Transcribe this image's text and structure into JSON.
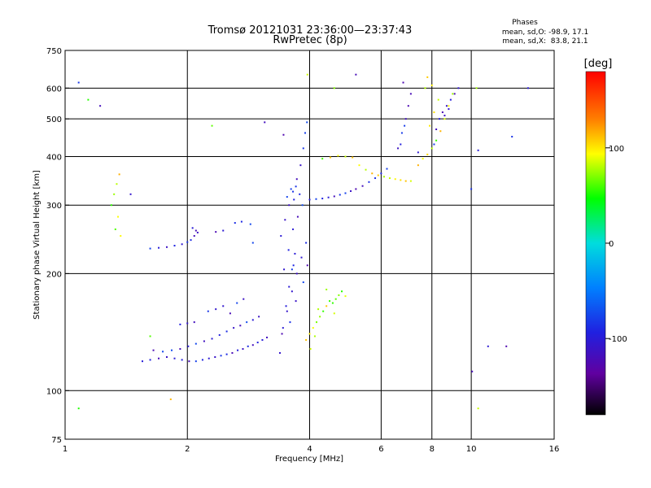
{
  "chart_data": {
    "type": "scatter",
    "title": "Tromsø 20121031 23:36:00—23:37:43",
    "subtitle": "RwPretec (8p)",
    "xlabel": "Frequency [MHz]",
    "ylabel": "Stationary phase Virtual Height [km]",
    "x_scale": "log2",
    "y_scale": "log",
    "xlim": [
      1,
      16
    ],
    "ylim": [
      75,
      750
    ],
    "x_ticks": [
      1,
      2,
      4,
      6,
      8,
      10,
      16
    ],
    "y_ticks": [
      75,
      100,
      200,
      300,
      400,
      500,
      600,
      750
    ],
    "x_grid": [
      2,
      4,
      6,
      8,
      10
    ],
    "y_grid": [
      100,
      200,
      300,
      400,
      500,
      600
    ],
    "grid": true,
    "phase_stats": {
      "title": "Phases",
      "line_o": "mean, sd,O: -98.9, 17.1",
      "line_x": "mean, sd,X:  83.8, 21.1"
    },
    "colorbar": {
      "label": "[deg]",
      "min": -180,
      "max": 180,
      "ticks": [
        100,
        0,
        -100
      ],
      "tick_labels": [
        "100",
        "0",
        "-100"
      ]
    },
    "series": [
      {
        "mean_phase": -98.9,
        "sd_phase": 17.1,
        "color": "#2a2af0",
        "points": [
          [
            1.55,
            119
          ],
          [
            1.62,
            120
          ],
          [
            1.7,
            121
          ],
          [
            1.78,
            122
          ],
          [
            1.86,
            121
          ],
          [
            1.94,
            120
          ],
          [
            2.02,
            119
          ],
          [
            2.1,
            119
          ],
          [
            2.18,
            120
          ],
          [
            2.26,
            121
          ],
          [
            2.34,
            122
          ],
          [
            2.42,
            123
          ],
          [
            2.5,
            124
          ],
          [
            2.58,
            125
          ],
          [
            2.66,
            127
          ],
          [
            2.74,
            128
          ],
          [
            2.82,
            130
          ],
          [
            2.9,
            131
          ],
          [
            2.98,
            133
          ],
          [
            3.06,
            135
          ],
          [
            3.14,
            137
          ],
          [
            1.65,
            127
          ],
          [
            1.74,
            126
          ],
          [
            1.83,
            127
          ],
          [
            1.92,
            128
          ],
          [
            2.01,
            130
          ],
          [
            2.1,
            132
          ],
          [
            2.2,
            134
          ],
          [
            2.3,
            136
          ],
          [
            2.4,
            139
          ],
          [
            2.5,
            142
          ],
          [
            2.6,
            145
          ],
          [
            2.7,
            147
          ],
          [
            2.8,
            150
          ],
          [
            2.9,
            152
          ],
          [
            3.0,
            155
          ],
          [
            1.92,
            148
          ],
          [
            2.0,
            149
          ],
          [
            2.08,
            150
          ],
          [
            2.25,
            160
          ],
          [
            2.35,
            162
          ],
          [
            2.45,
            165
          ],
          [
            2.55,
            158
          ],
          [
            2.65,
            168
          ],
          [
            2.75,
            172
          ],
          [
            1.62,
            232
          ],
          [
            1.7,
            233
          ],
          [
            1.78,
            234
          ],
          [
            1.86,
            236
          ],
          [
            1.94,
            238
          ],
          [
            2.0,
            241
          ],
          [
            2.04,
            244
          ],
          [
            2.08,
            250
          ],
          [
            2.12,
            255
          ],
          [
            2.06,
            262
          ],
          [
            2.1,
            258
          ],
          [
            2.35,
            256
          ],
          [
            2.45,
            258
          ],
          [
            2.62,
            270
          ],
          [
            2.72,
            272
          ],
          [
            2.86,
            268
          ],
          [
            3.38,
            125
          ],
          [
            3.44,
            145
          ],
          [
            3.5,
            165
          ],
          [
            3.56,
            185
          ],
          [
            3.62,
            205
          ],
          [
            3.68,
            225
          ],
          [
            3.4,
            250
          ],
          [
            3.48,
            275
          ],
          [
            3.56,
            300
          ],
          [
            3.64,
            325
          ],
          [
            3.72,
            350
          ],
          [
            3.8,
            380
          ],
          [
            3.86,
            420
          ],
          [
            3.9,
            460
          ],
          [
            3.94,
            490
          ],
          [
            3.52,
            315
          ],
          [
            3.6,
            330
          ],
          [
            3.7,
            335
          ],
          [
            3.78,
            320
          ],
          [
            3.66,
            310
          ],
          [
            3.42,
            140
          ],
          [
            3.52,
            160
          ],
          [
            3.62,
            180
          ],
          [
            3.72,
            200
          ],
          [
            3.82,
            220
          ],
          [
            3.92,
            240
          ],
          [
            3.58,
            150
          ],
          [
            3.7,
            170
          ],
          [
            3.86,
            190
          ],
          [
            3.95,
            210
          ],
          [
            3.46,
            205
          ],
          [
            3.55,
            230
          ],
          [
            3.64,
            260
          ],
          [
            3.74,
            280
          ],
          [
            3.84,
            300
          ],
          [
            4.0,
            310
          ],
          [
            4.15,
            311
          ],
          [
            4.3,
            312
          ],
          [
            4.45,
            314
          ],
          [
            4.6,
            316
          ],
          [
            4.75,
            319
          ],
          [
            4.9,
            322
          ],
          [
            5.05,
            326
          ],
          [
            5.2,
            330
          ],
          [
            5.4,
            336
          ],
          [
            5.6,
            344
          ],
          [
            5.8,
            352
          ],
          [
            6.0,
            362
          ],
          [
            6.2,
            372
          ],
          [
            6.6,
            420
          ],
          [
            6.75,
            460
          ],
          [
            6.9,
            500
          ],
          [
            7.0,
            540
          ],
          [
            7.1,
            580
          ],
          [
            6.8,
            620
          ],
          [
            6.7,
            430
          ],
          [
            6.85,
            480
          ],
          [
            8.1,
            430
          ],
          [
            8.2,
            470
          ],
          [
            8.35,
            500
          ],
          [
            8.5,
            520
          ],
          [
            8.7,
            540
          ],
          [
            8.9,
            560
          ],
          [
            9.1,
            580
          ],
          [
            9.3,
            600
          ],
          [
            8.6,
            510
          ],
          [
            8.8,
            530
          ],
          [
            1.08,
            620
          ],
          [
            1.22,
            540
          ],
          [
            3.1,
            490
          ],
          [
            3.45,
            455
          ],
          [
            3.65,
            210
          ],
          [
            5.2,
            650
          ],
          [
            7.4,
            410
          ],
          [
            10.05,
            112
          ],
          [
            10.4,
            415
          ],
          [
            11.0,
            130
          ],
          [
            12.2,
            130
          ],
          [
            12.6,
            450
          ],
          [
            13.8,
            600
          ],
          [
            10.0,
            330
          ],
          [
            1.45,
            320
          ],
          [
            2.9,
            240
          ]
        ]
      },
      {
        "mean_phase": 83.8,
        "sd_phase": 21.1,
        "color": "#c8e800",
        "points": [
          [
            4.0,
            140
          ],
          [
            4.08,
            145
          ],
          [
            4.16,
            150
          ],
          [
            4.24,
            155
          ],
          [
            4.32,
            160
          ],
          [
            4.4,
            165
          ],
          [
            4.48,
            170
          ],
          [
            4.56,
            168
          ],
          [
            4.64,
            172
          ],
          [
            4.72,
            176
          ],
          [
            4.8,
            180
          ],
          [
            4.9,
            175
          ],
          [
            4.2,
            162
          ],
          [
            4.4,
            182
          ],
          [
            4.6,
            158
          ],
          [
            3.92,
            135
          ],
          [
            4.02,
            128
          ],
          [
            4.12,
            138
          ],
          [
            4.3,
            395
          ],
          [
            4.5,
            398
          ],
          [
            4.7,
            402
          ],
          [
            4.9,
            400
          ],
          [
            5.1,
            398
          ],
          [
            5.3,
            380
          ],
          [
            5.5,
            370
          ],
          [
            5.7,
            362
          ],
          [
            5.9,
            358
          ],
          [
            6.1,
            355
          ],
          [
            6.3,
            352
          ],
          [
            6.5,
            350
          ],
          [
            6.7,
            348
          ],
          [
            6.9,
            346
          ],
          [
            7.1,
            346
          ],
          [
            7.4,
            380
          ],
          [
            7.6,
            395
          ],
          [
            7.8,
            405
          ],
          [
            8.0,
            420
          ],
          [
            8.2,
            440
          ],
          [
            8.4,
            465
          ],
          [
            8.6,
            500
          ],
          [
            8.8,
            540
          ],
          [
            9.0,
            580
          ],
          [
            7.9,
            480
          ],
          [
            8.1,
            520
          ],
          [
            8.3,
            560
          ],
          [
            7.7,
            600
          ],
          [
            7.8,
            640
          ],
          [
            8.0,
            610
          ],
          [
            1.3,
            300
          ],
          [
            1.32,
            320
          ],
          [
            1.34,
            340
          ],
          [
            1.36,
            360
          ],
          [
            1.35,
            280
          ],
          [
            1.33,
            260
          ],
          [
            1.37,
            250
          ],
          [
            1.62,
            138
          ],
          [
            2.3,
            480
          ],
          [
            3.95,
            650
          ],
          [
            4.6,
            600
          ],
          [
            1.08,
            90
          ],
          [
            1.82,
            95
          ],
          [
            10.4,
            90
          ],
          [
            1.14,
            560
          ],
          [
            10.3,
            600
          ]
        ]
      }
    ]
  }
}
